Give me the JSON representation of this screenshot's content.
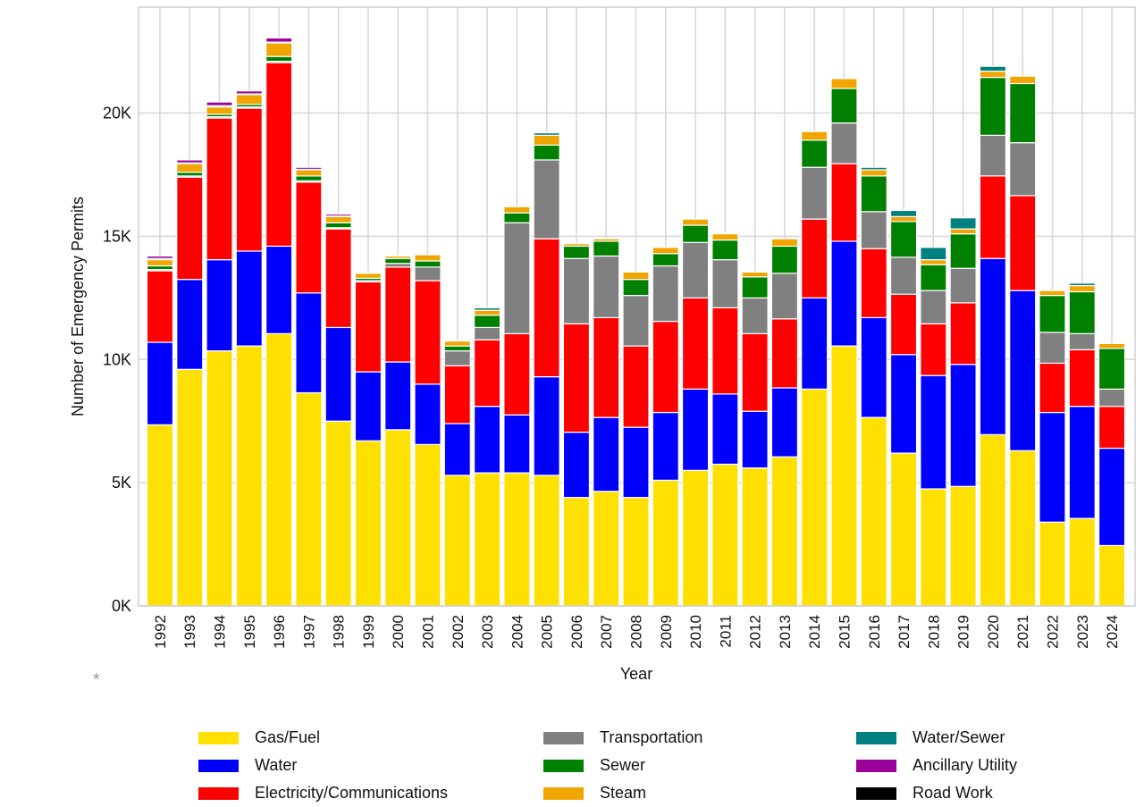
{
  "chart_data": {
    "type": "bar",
    "stacked": true,
    "xlabel": "Year",
    "ylabel": "Number of Emergency Permits",
    "ylim": [
      0,
      24300
    ],
    "yticks": [
      "0K",
      "5K",
      "10K",
      "15K",
      "20K"
    ],
    "ytick_values": [
      0,
      5000,
      10000,
      15000,
      20000
    ],
    "grid": true,
    "legend_position": "bottom",
    "footnote": "*",
    "categories": [
      "1992",
      "1993",
      "1994",
      "1995",
      "1996",
      "1997",
      "1998",
      "1999",
      "2000",
      "2001",
      "2002",
      "2003",
      "2004",
      "2005",
      "2006",
      "2007",
      "2008",
      "2009",
      "2010",
      "2011",
      "2012",
      "2013",
      "2014",
      "2015",
      "2016",
      "2017",
      "2018",
      "2019",
      "2020",
      "2021",
      "2022",
      "2023",
      "2024"
    ],
    "series": [
      {
        "name": "Gas/Fuel",
        "color": "#FFE000",
        "values": [
          7350,
          9600,
          10350,
          10550,
          11050,
          8650,
          7500,
          6700,
          7150,
          6550,
          5300,
          5400,
          5400,
          5300,
          4400,
          4650,
          4400,
          5100,
          5500,
          5750,
          5600,
          6050,
          8800,
          10550,
          7650,
          6200,
          4750,
          4850,
          6950,
          6300,
          3400,
          3550,
          2450
        ]
      },
      {
        "name": "Water",
        "color": "#0000FF",
        "values": [
          3350,
          3650,
          3700,
          3850,
          3550,
          4050,
          3800,
          2800,
          2750,
          2450,
          2100,
          2700,
          2350,
          4000,
          2650,
          3000,
          2850,
          2750,
          3300,
          2850,
          2300,
          2800,
          3700,
          4250,
          4050,
          4000,
          4600,
          4950,
          7150,
          6500,
          4450,
          4550,
          3950
        ]
      },
      {
        "name": "Electricity/Communications",
        "color": "#FF0000",
        "values": [
          2900,
          4150,
          5750,
          5800,
          7450,
          4500,
          4000,
          3650,
          3850,
          4200,
          2350,
          2700,
          3300,
          5600,
          4400,
          4050,
          3300,
          3700,
          3700,
          3500,
          3150,
          2800,
          3200,
          3150,
          2800,
          2450,
          2100,
          2500,
          3350,
          3850,
          2000,
          2300,
          1700
        ]
      },
      {
        "name": "Transportation",
        "color": "#808080",
        "values": [
          50,
          50,
          50,
          50,
          50,
          50,
          50,
          50,
          150,
          550,
          600,
          500,
          4500,
          3200,
          2650,
          2500,
          2050,
          2250,
          2250,
          1950,
          1450,
          1850,
          2100,
          1650,
          1500,
          1500,
          1350,
          1400,
          1650,
          2150,
          1250,
          650,
          700
        ]
      },
      {
        "name": "Sewer",
        "color": "#008000",
        "values": [
          150,
          150,
          100,
          100,
          200,
          200,
          200,
          100,
          200,
          250,
          200,
          500,
          400,
          600,
          500,
          600,
          650,
          500,
          700,
          800,
          850,
          1100,
          1100,
          1400,
          1450,
          1450,
          1050,
          1400,
          2350,
          2400,
          1500,
          1700,
          1650
        ]
      },
      {
        "name": "Steam",
        "color": "#F0A500",
        "values": [
          250,
          350,
          300,
          400,
          550,
          250,
          250,
          200,
          100,
          250,
          200,
          200,
          250,
          400,
          100,
          100,
          300,
          250,
          250,
          250,
          200,
          300,
          350,
          400,
          250,
          200,
          200,
          200,
          250,
          300,
          200,
          250,
          200
        ]
      },
      {
        "name": "Water/Sewer",
        "color": "#008080",
        "values": [
          50,
          30,
          50,
          30,
          30,
          20,
          20,
          0,
          0,
          0,
          0,
          100,
          0,
          100,
          0,
          0,
          0,
          0,
          0,
          0,
          0,
          0,
          0,
          0,
          100,
          250,
          500,
          450,
          200,
          0,
          0,
          100,
          0
        ]
      },
      {
        "name": "Ancillary Utility",
        "color": "#990099",
        "values": [
          100,
          120,
          150,
          120,
          170,
          80,
          80,
          20,
          20,
          0,
          0,
          0,
          0,
          0,
          0,
          0,
          0,
          0,
          0,
          0,
          0,
          0,
          0,
          0,
          0,
          0,
          0,
          0,
          0,
          0,
          0,
          0,
          0
        ]
      },
      {
        "name": "Road Work",
        "color": "#000000",
        "values": [
          0,
          0,
          0,
          0,
          0,
          0,
          0,
          0,
          0,
          0,
          0,
          0,
          0,
          0,
          0,
          0,
          0,
          0,
          0,
          0,
          0,
          0,
          0,
          0,
          0,
          0,
          0,
          0,
          0,
          0,
          0,
          0,
          0
        ]
      }
    ]
  }
}
